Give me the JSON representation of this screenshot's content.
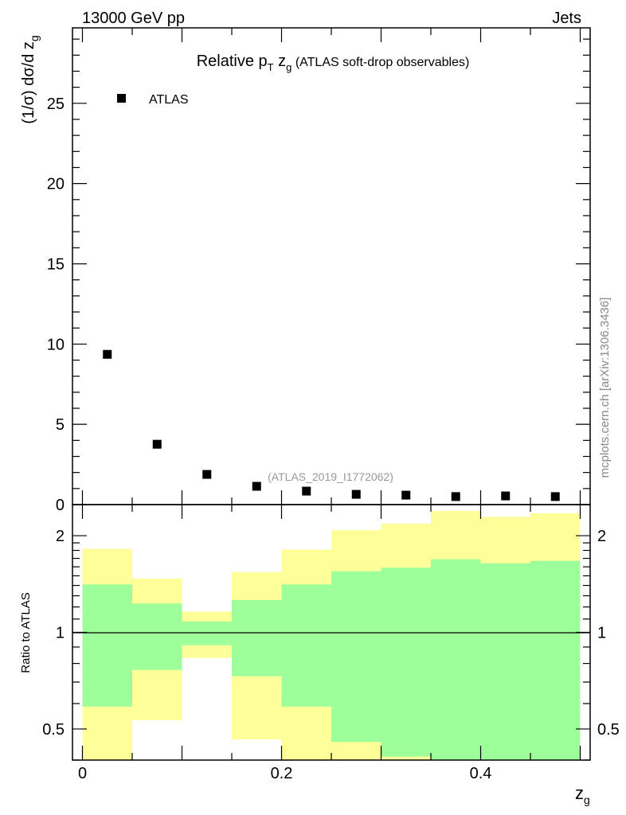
{
  "header": {
    "energy": "13000 GeV pp",
    "process": "Jets"
  },
  "side_label": "mcplots.cern.ch [arXiv:1306.3436]",
  "watermark": "(ATLAS_2019_I1772062)",
  "colors": {
    "data": "#000000",
    "band_inner": "#9cff9a",
    "band_outer": "#ffff99",
    "watermark": "#999999"
  },
  "chart_data": [
    {
      "type": "scatter",
      "title": "Relative p_T z_g (ATLAS soft-drop observables)",
      "title_parts": {
        "pre": "Relative p",
        "sub1": "T",
        "mid": " z",
        "sub2": "g",
        "post": " (ATLAS soft-drop observables)"
      },
      "xlabel": "z_g",
      "xlabel_parts": {
        "main": "z",
        "sub": "g"
      },
      "ylabel": "(1/σ) dσ/d z_g",
      "ylabel_parts": {
        "main": "(1/σ) dσ/d z",
        "sub": "g"
      },
      "xlim": [
        -0.01,
        0.51
      ],
      "ylim": [
        0,
        29.7
      ],
      "yticks": [
        0,
        5,
        10,
        15,
        20,
        25
      ],
      "ytick_labels": [
        "0",
        "5",
        "10",
        "15",
        "20",
        "25"
      ],
      "legend": {
        "placement": "top-left",
        "entries": [
          "ATLAS"
        ]
      },
      "series": [
        {
          "name": "ATLAS",
          "x": [
            0.025,
            0.075,
            0.125,
            0.175,
            0.225,
            0.275,
            0.325,
            0.375,
            0.425,
            0.475
          ],
          "y": [
            9.36,
            3.76,
            1.88,
            1.14,
            0.84,
            0.64,
            0.59,
            0.5,
            0.54,
            0.5
          ]
        }
      ]
    },
    {
      "type": "area",
      "ylabel": "Ratio to ATLAS",
      "yscale": "log",
      "xlim": [
        -0.01,
        0.51
      ],
      "ylim": [
        0.4,
        2.5
      ],
      "yticks": [
        0.5,
        1,
        2
      ],
      "ytick_labels": [
        "0.5",
        "1",
        "2"
      ],
      "xticks": [
        0,
        0.2,
        0.4
      ],
      "xtick_labels": [
        "0",
        "0.2",
        "0.4"
      ],
      "bin_edges": [
        0,
        0.05,
        0.1,
        0.15,
        0.2,
        0.25,
        0.3,
        0.35,
        0.4,
        0.45,
        0.5
      ],
      "bands": [
        {
          "name": "outer (yellow)",
          "low": [
            0.38,
            0.533,
            0.833,
            0.464,
            0.38,
            0.38,
            0.38,
            0.38,
            0.38,
            0.38
          ],
          "high": [
            1.82,
            1.47,
            1.16,
            1.54,
            1.81,
            2.08,
            2.18,
            2.39,
            2.29,
            2.35
          ]
        },
        {
          "name": "inner (green)",
          "low": [
            0.587,
            0.764,
            0.912,
            0.73,
            0.587,
            0.456,
            0.41,
            0.38,
            0.38,
            0.38
          ],
          "high": [
            1.41,
            1.23,
            1.08,
            1.26,
            1.41,
            1.55,
            1.59,
            1.69,
            1.64,
            1.67
          ]
        }
      ],
      "reference_line": 1
    }
  ]
}
